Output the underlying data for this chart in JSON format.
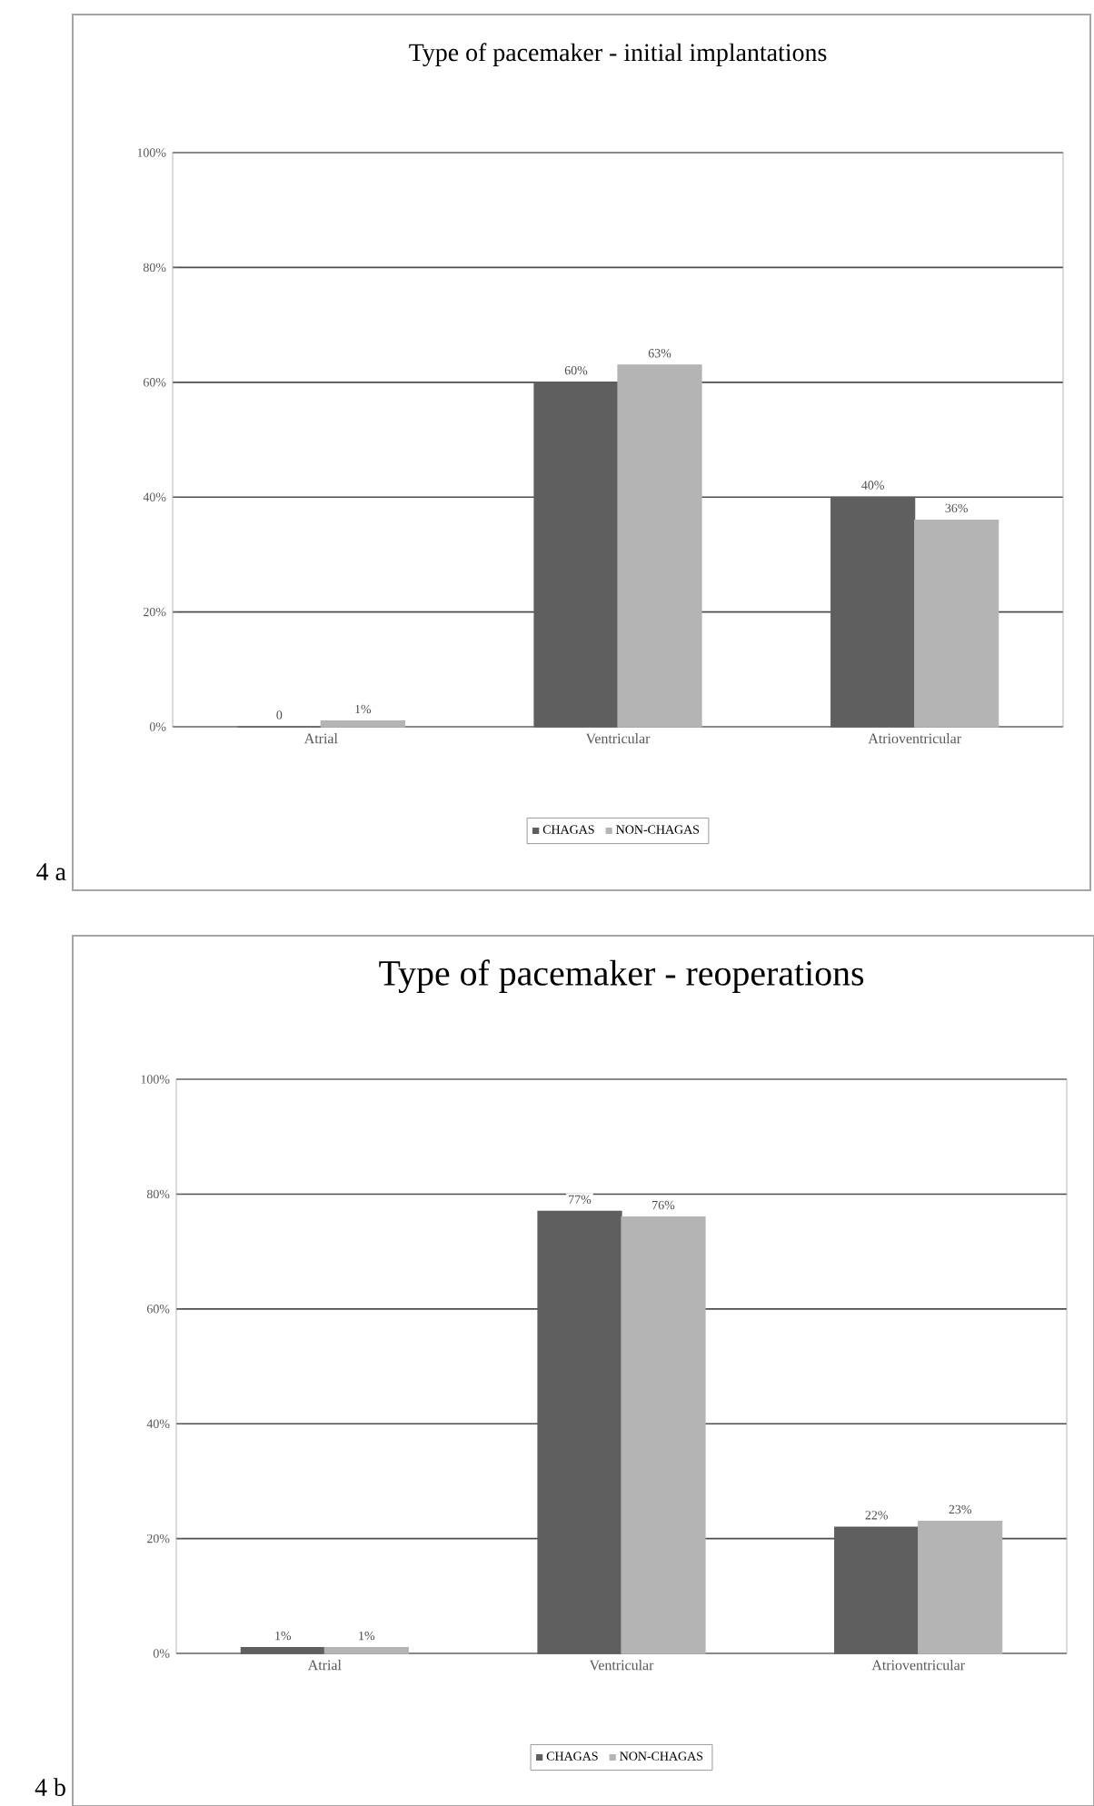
{
  "chart_data": [
    {
      "type": "bar",
      "title": "Type of pacemaker - initial implantations",
      "categories": [
        "Atrial",
        "Ventricular",
        "Atrioventricular"
      ],
      "series": [
        {
          "name": "CHAGAS",
          "color": "#5f5f5f",
          "values": [
            0,
            60,
            40
          ],
          "value_labels": [
            "0",
            "60%",
            "40%"
          ]
        },
        {
          "name": "NON-CHAGAS",
          "color": "#b4b4b4",
          "values": [
            1,
            63,
            36
          ],
          "value_labels": [
            "1%",
            "63%",
            "36%"
          ]
        }
      ],
      "ylim": [
        0,
        100
      ],
      "yticks": [
        {
          "value": 0,
          "label": "0%"
        },
        {
          "value": 20,
          "label": "20%"
        },
        {
          "value": 40,
          "label": "40%"
        },
        {
          "value": 60,
          "label": "60%"
        },
        {
          "value": 80,
          "label": "80%"
        },
        {
          "value": 100,
          "label": "100%"
        }
      ],
      "grid": "y",
      "legend": "bottom",
      "annotations": [
        "4 a"
      ]
    },
    {
      "type": "bar",
      "title": "Type of pacemaker - reoperations",
      "categories": [
        "Atrial",
        "Ventricular",
        "Atrioventricular"
      ],
      "series": [
        {
          "name": "CHAGAS",
          "color": "#5f5f5f",
          "values": [
            1,
            77,
            22
          ],
          "value_labels": [
            "1%",
            "77%",
            "22%"
          ]
        },
        {
          "name": "NON-CHAGAS",
          "color": "#b4b4b4",
          "values": [
            1,
            76,
            23
          ],
          "value_labels": [
            "1%",
            "76%",
            "23%"
          ]
        }
      ],
      "ylim": [
        0,
        100
      ],
      "yticks": [
        {
          "value": 0,
          "label": "0%"
        },
        {
          "value": 20,
          "label": "20%"
        },
        {
          "value": 40,
          "label": "40%"
        },
        {
          "value": 60,
          "label": "60%"
        },
        {
          "value": 80,
          "label": "80%"
        },
        {
          "value": 100,
          "label": "100%"
        }
      ],
      "grid": "y",
      "legend": "bottom",
      "annotations": [
        "4 b"
      ]
    }
  ]
}
